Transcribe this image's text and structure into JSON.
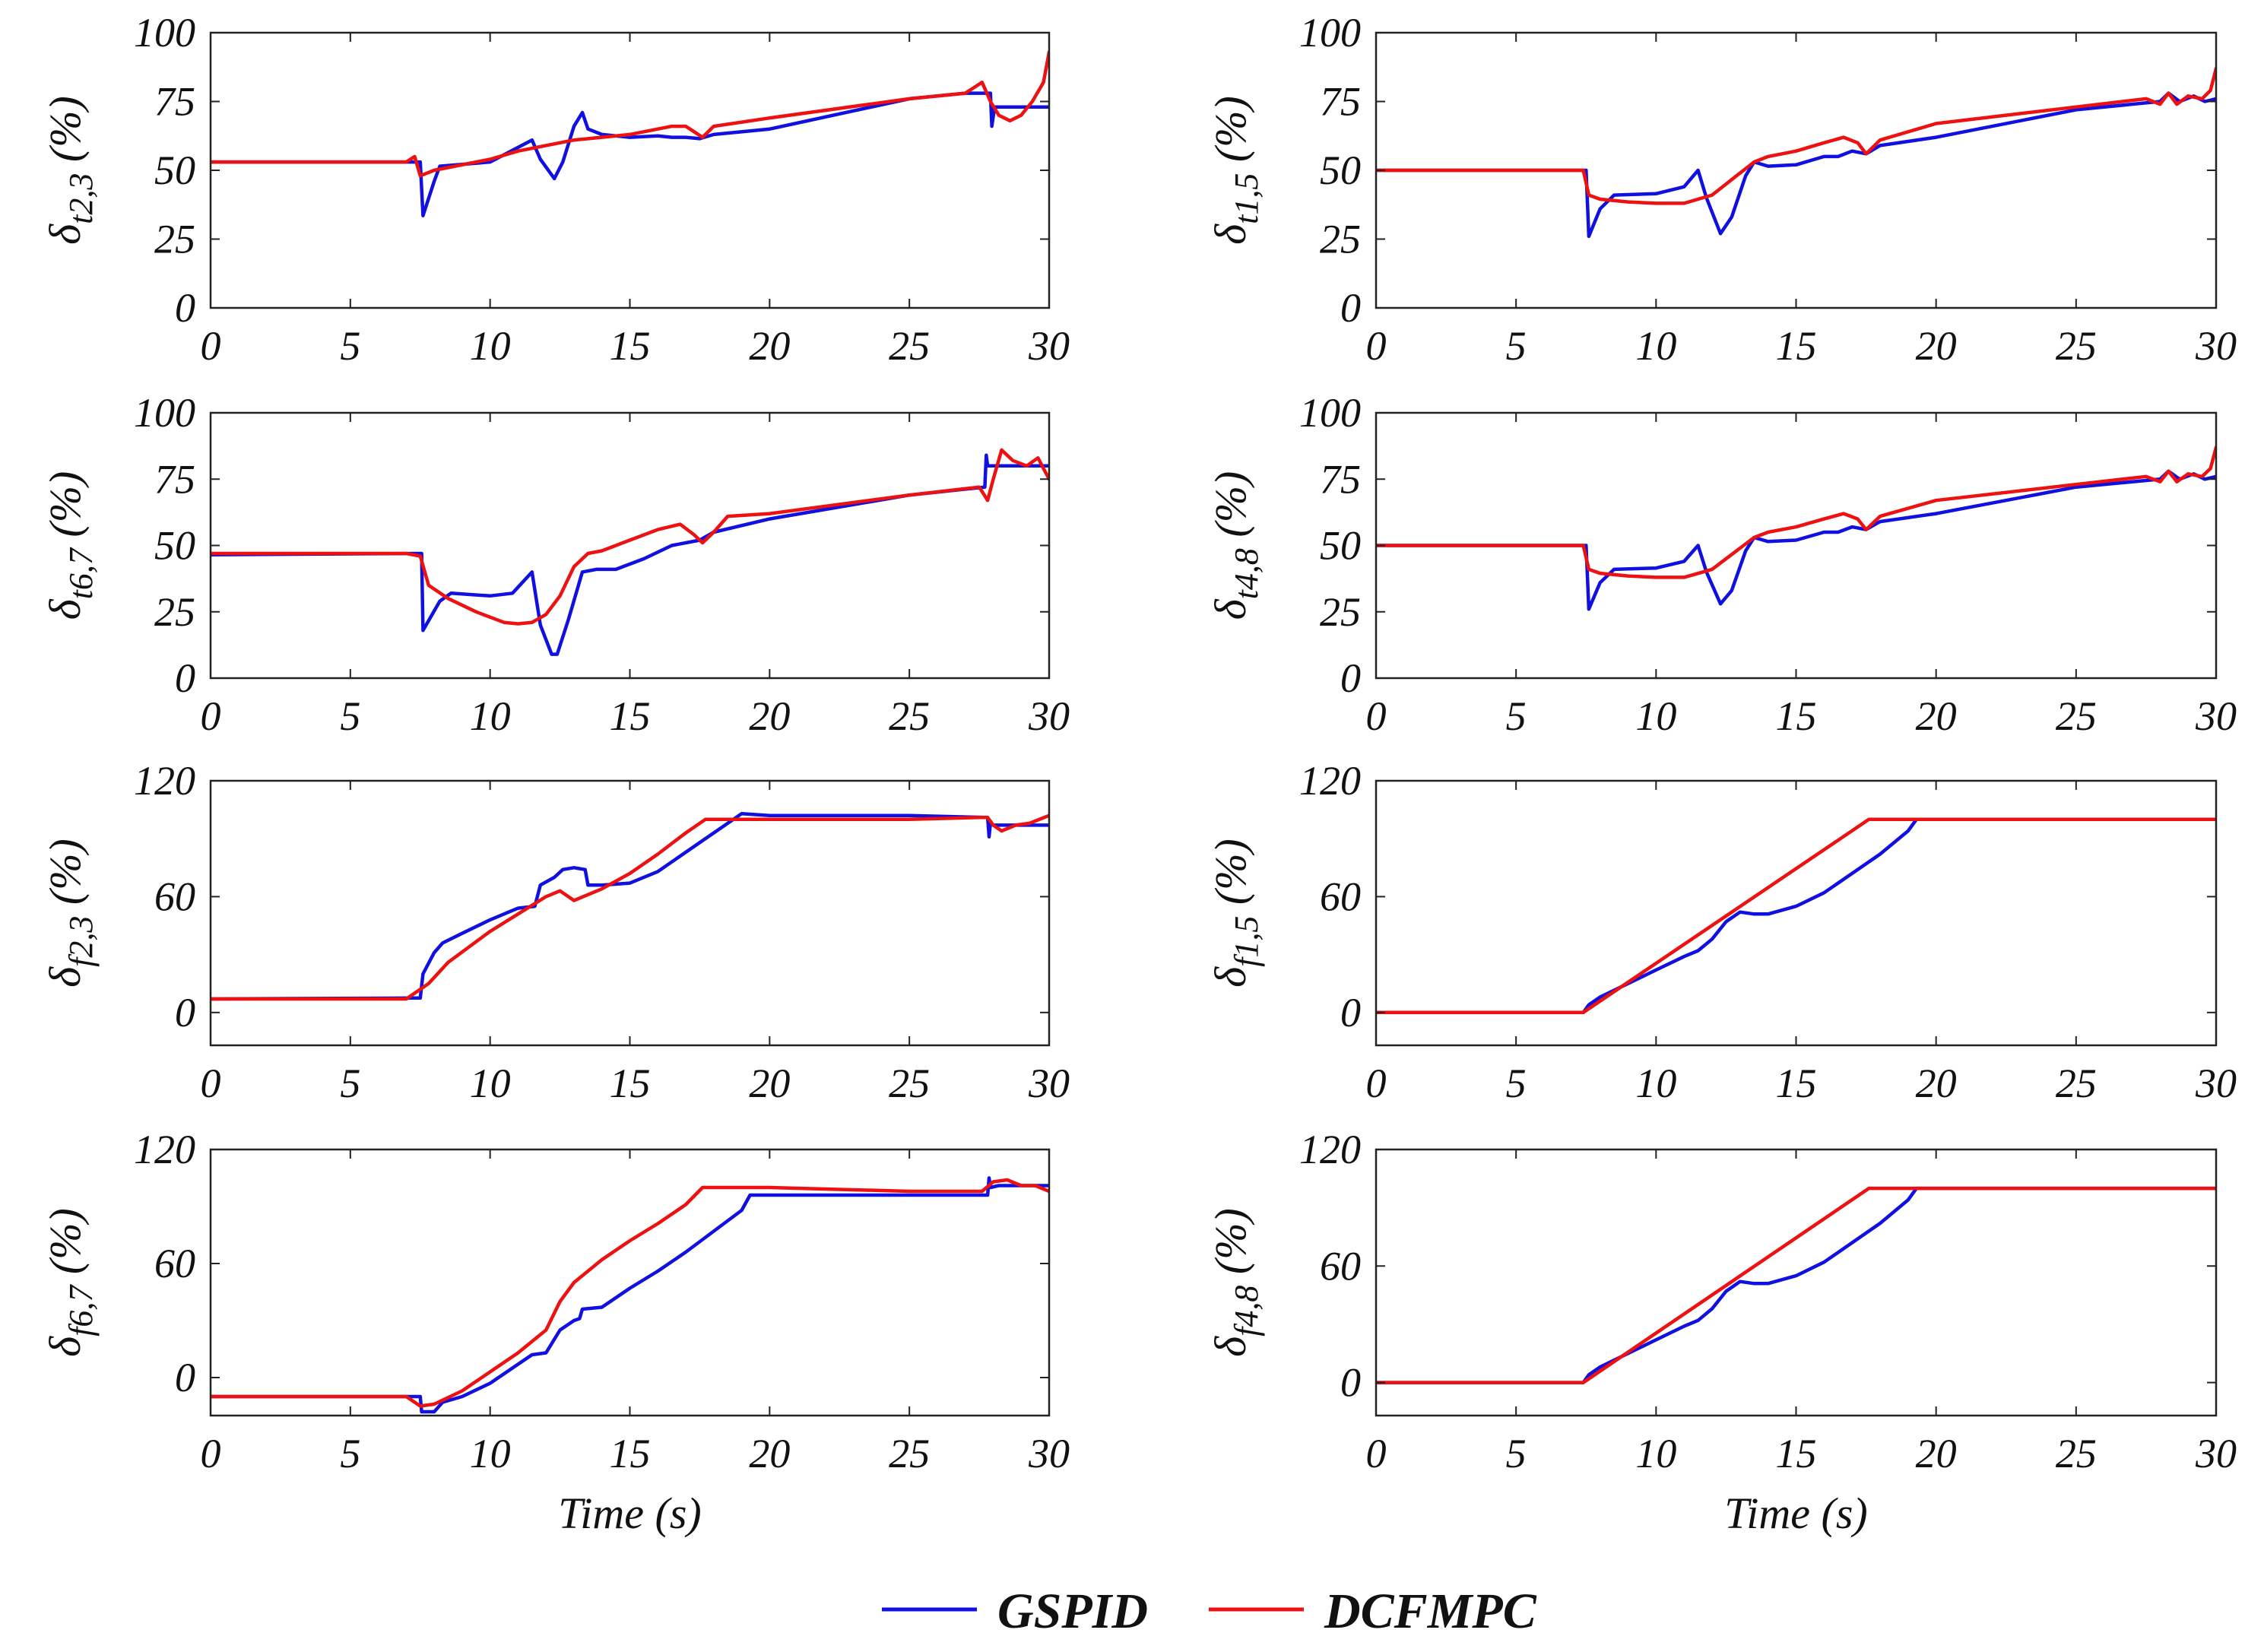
{
  "colors": {
    "gspid": "#1010e0",
    "dcfmpc": "#ee1111"
  },
  "legend": {
    "gspid_label": "GSPID",
    "dcfmpc_label": "DCFMPC"
  },
  "chart_data": [
    {
      "type": "line",
      "id": "p1",
      "ylabel": {
        "main": "δ",
        "sub": "t2,3",
        "unit": " (%)"
      },
      "xlabel": "",
      "xlim": [
        0,
        30
      ],
      "ylim": [
        0,
        100
      ],
      "xticks": [
        "0",
        "5",
        "10",
        "15",
        "20",
        "25",
        "30"
      ],
      "yticks": [
        "0",
        "25",
        "50",
        "75",
        "100"
      ],
      "series": [
        {
          "name": "GSPID",
          "x": [
            0,
            7.4,
            7.5,
            7.6,
            8,
            8.2,
            10,
            11.5,
            11.8,
            12.3,
            12.6,
            13.0,
            13.3,
            13.5,
            14,
            15,
            16,
            16.5,
            17,
            17.5,
            18,
            20,
            25,
            27,
            27.9,
            27.95,
            28.05,
            28.1,
            30
          ],
          "y": [
            53,
            53,
            53,
            33.5,
            46,
            51.5,
            53,
            61,
            54,
            47,
            53,
            66,
            71,
            65,
            63,
            62,
            62.5,
            62,
            62,
            61.5,
            63,
            65,
            76,
            78,
            78,
            66,
            73,
            73,
            73
          ]
        },
        {
          "name": "DCFMPC",
          "x": [
            0,
            7,
            7.3,
            7.5,
            8,
            10,
            11,
            12,
            13,
            14,
            15,
            16,
            16.5,
            17,
            17.3,
            17.6,
            18,
            20,
            25,
            27,
            27.6,
            27.9,
            28.2,
            28.6,
            29,
            29.4,
            29.8,
            30
          ],
          "y": [
            53,
            53,
            55,
            48,
            50,
            54,
            57,
            59,
            61,
            62,
            63,
            65,
            66,
            66,
            64,
            62,
            66,
            69,
            76,
            78,
            82,
            75,
            70,
            68,
            70,
            75,
            82,
            93
          ]
        }
      ]
    },
    {
      "type": "line",
      "id": "p2",
      "ylabel": {
        "main": "δ",
        "sub": "t1,5",
        "unit": " (%)"
      },
      "xlabel": "",
      "xlim": [
        0,
        30
      ],
      "ylim": [
        0,
        100
      ],
      "xticks": [
        "0",
        "5",
        "10",
        "15",
        "20",
        "25",
        "30"
      ],
      "yticks": [
        "0",
        "25",
        "50",
        "75",
        "100"
      ],
      "series": [
        {
          "name": "GSPID",
          "x": [
            0,
            7.4,
            7.5,
            7.6,
            8,
            8.5,
            10,
            11,
            11.5,
            11.8,
            12.3,
            12.7,
            13.2,
            13.5,
            14,
            15,
            16,
            16.5,
            17,
            17.5,
            18,
            20,
            25,
            28,
            28.3,
            28.7,
            29.2,
            29.6,
            30
          ],
          "y": [
            50,
            50,
            50,
            26,
            36,
            41,
            41.5,
            44,
            50,
            40,
            27,
            33,
            48,
            53,
            51.5,
            52,
            55,
            55,
            57,
            56,
            59,
            62,
            72,
            75,
            78,
            75,
            77,
            75,
            76
          ]
        },
        {
          "name": "DCFMPC",
          "x": [
            0,
            7,
            7.4,
            7.6,
            8,
            9,
            10,
            11,
            12,
            13,
            13.5,
            14,
            15,
            16,
            16.7,
            17.2,
            17.5,
            18,
            20,
            25,
            27.5,
            28,
            28.3,
            28.6,
            29,
            29.5,
            29.8,
            30
          ],
          "y": [
            50,
            50,
            50,
            41,
            39.5,
            38.5,
            38,
            38,
            41,
            49,
            53,
            55,
            57,
            60,
            62,
            60,
            56,
            61,
            67,
            73,
            76,
            74,
            78,
            74,
            77,
            76,
            79,
            87
          ]
        }
      ]
    },
    {
      "type": "line",
      "id": "p3",
      "ylabel": {
        "main": "δ",
        "sub": "t6,7",
        "unit": " (%)"
      },
      "xlabel": "",
      "xlim": [
        0,
        30
      ],
      "ylim": [
        0,
        100
      ],
      "xticks": [
        "0",
        "5",
        "10",
        "15",
        "20",
        "25",
        "30"
      ],
      "yticks": [
        "0",
        "25",
        "50",
        "75",
        "100"
      ],
      "series": [
        {
          "name": "GSPID",
          "x": [
            0,
            7.5,
            7.55,
            7.6,
            8.2,
            8.6,
            10,
            10.8,
            11.5,
            11.8,
            12.2,
            12.4,
            12.8,
            13.3,
            13.8,
            14.5,
            15.5,
            16.5,
            17.5,
            18,
            20,
            25,
            27.7,
            27.75,
            27.8,
            28.2,
            29,
            30
          ],
          "y": [
            46.5,
            47,
            47,
            18,
            29,
            32,
            31,
            32,
            40,
            20,
            9,
            9,
            22,
            40,
            41,
            41,
            45,
            50,
            52,
            55,
            60,
            69,
            72,
            84,
            80,
            80,
            80,
            80
          ]
        },
        {
          "name": "DCFMPC",
          "x": [
            0,
            7,
            7.5,
            7.8,
            8.5,
            9.5,
            10.5,
            11,
            11.5,
            12,
            12.5,
            13,
            13.5,
            14,
            15,
            16,
            16.8,
            17.3,
            17.6,
            18,
            18.5,
            20,
            25,
            27.5,
            27.8,
            28,
            28.3,
            28.7,
            29.2,
            29.6,
            30
          ],
          "y": [
            47,
            47,
            46,
            35,
            30,
            25,
            21,
            20.5,
            21,
            24,
            31,
            42,
            47,
            48,
            52,
            56,
            58,
            54,
            51,
            55,
            61,
            62,
            69,
            72,
            67,
            75,
            86,
            82,
            80,
            83,
            75
          ]
        }
      ]
    },
    {
      "type": "line",
      "id": "p4",
      "ylabel": {
        "main": "δ",
        "sub": "t4,8",
        "unit": " (%)"
      },
      "xlabel": "",
      "xlim": [
        0,
        30
      ],
      "ylim": [
        0,
        100
      ],
      "xticks": [
        "0",
        "5",
        "10",
        "15",
        "20",
        "25",
        "30"
      ],
      "yticks": [
        "0",
        "25",
        "50",
        "75",
        "100"
      ],
      "series": [
        {
          "name": "GSPID",
          "x": [
            0,
            7.4,
            7.5,
            7.6,
            8,
            8.5,
            10,
            11,
            11.5,
            11.8,
            12.3,
            12.7,
            13.2,
            13.5,
            14,
            15,
            16,
            16.5,
            17,
            17.5,
            18,
            20,
            25,
            28,
            28.3,
            28.7,
            29.2,
            29.6,
            30
          ],
          "y": [
            50,
            50,
            50,
            26,
            36,
            41,
            41.5,
            44,
            50,
            40,
            28,
            33,
            48,
            53,
            51.5,
            52,
            55,
            55,
            57,
            56,
            59,
            62,
            72,
            75,
            78,
            75,
            77,
            75,
            76
          ]
        },
        {
          "name": "DCFMPC",
          "x": [
            0,
            7,
            7.4,
            7.6,
            8,
            9,
            10,
            11,
            12,
            13,
            13.5,
            14,
            15,
            16,
            16.7,
            17.2,
            17.5,
            18,
            20,
            25,
            27.5,
            28,
            28.3,
            28.6,
            29,
            29.5,
            29.8,
            30
          ],
          "y": [
            50,
            50,
            50,
            41,
            39.5,
            38.5,
            38,
            38,
            41,
            49,
            53,
            55,
            57,
            60,
            62,
            60,
            56,
            61,
            67,
            73,
            76,
            74,
            78,
            74,
            77,
            76,
            79,
            87
          ]
        }
      ]
    },
    {
      "type": "line",
      "id": "p5",
      "ylabel": {
        "main": "δ",
        "sub": "f2,3",
        "unit": " (%)"
      },
      "xlabel": "",
      "xlim": [
        0,
        30
      ],
      "ylim": [
        -17,
        120
      ],
      "xticks": [
        "0",
        "5",
        "10",
        "15",
        "20",
        "25",
        "30"
      ],
      "yticks": [
        "0",
        "60",
        "120"
      ],
      "series": [
        {
          "name": "GSPID",
          "x": [
            0,
            7.4,
            7.5,
            7.6,
            8,
            8.3,
            9,
            10,
            11,
            11.6,
            11.8,
            12.3,
            12.6,
            13,
            13.4,
            13.5,
            14,
            15,
            16,
            17,
            18,
            19,
            20,
            25,
            27.8,
            27.85,
            27.9,
            28,
            28.5,
            30
          ],
          "y": [
            7,
            7.5,
            7.5,
            20,
            31,
            36,
            41,
            48,
            54,
            55,
            66,
            70,
            74,
            75,
            74,
            66,
            66,
            67,
            73,
            83,
            93,
            103,
            102,
            102,
            101,
            91,
            98,
            97,
            97,
            97
          ]
        },
        {
          "name": "DCFMPC",
          "x": [
            0,
            7,
            7.8,
            8.5,
            10,
            11,
            12,
            12.5,
            13,
            14,
            15,
            16,
            17,
            17.7,
            20,
            25,
            27.5,
            27.8,
            28,
            28.3,
            28.8,
            29.3,
            30
          ],
          "y": [
            7,
            7,
            15,
            26,
            42,
            51,
            60,
            63,
            58,
            64,
            72,
            82,
            93,
            100,
            100,
            100,
            101,
            101,
            97,
            94,
            97,
            98,
            102
          ]
        }
      ]
    },
    {
      "type": "line",
      "id": "p6",
      "ylabel": {
        "main": "δ",
        "sub": "f1,5",
        "unit": " (%)"
      },
      "xlabel": "",
      "xlim": [
        0,
        30
      ],
      "ylim": [
        -17,
        120
      ],
      "xticks": [
        "0",
        "5",
        "10",
        "15",
        "20",
        "25",
        "30"
      ],
      "yticks": [
        "0",
        "60",
        "120"
      ],
      "series": [
        {
          "name": "GSPID",
          "x": [
            0,
            7.4,
            7.6,
            8,
            9,
            10,
            11,
            11.5,
            12,
            12.5,
            13,
            13.5,
            14,
            15,
            16,
            17,
            18,
            19,
            19.3,
            30
          ],
          "y": [
            0,
            0,
            4,
            8,
            15,
            22,
            29,
            32,
            38,
            47,
            52,
            51,
            51,
            55,
            62,
            72,
            82,
            94,
            100,
            100
          ]
        },
        {
          "name": "DCFMPC",
          "x": [
            0,
            7.4,
            17.6,
            30
          ],
          "y": [
            0,
            0,
            100,
            100
          ]
        }
      ]
    },
    {
      "type": "line",
      "id": "p7",
      "ylabel": {
        "main": "δ",
        "sub": "f6,7",
        "unit": " (%)"
      },
      "xlabel": "Time (s)",
      "xlim": [
        0,
        30
      ],
      "ylim": [
        -20,
        120
      ],
      "xticks": [
        "0",
        "5",
        "10",
        "15",
        "20",
        "25",
        "30"
      ],
      "yticks": [
        "0",
        "60",
        "120"
      ],
      "series": [
        {
          "name": "GSPID",
          "x": [
            0,
            7.45,
            7.5,
            7.55,
            8,
            8.3,
            9,
            10,
            11,
            11.5,
            12,
            12.5,
            13,
            13.2,
            13.3,
            14,
            15,
            16,
            17,
            18,
            19,
            19.3,
            25,
            27.8,
            27.85,
            27.9,
            28.2,
            30
          ],
          "y": [
            -10,
            -10,
            -10,
            -18,
            -18,
            -13,
            -10,
            -3,
            7,
            12,
            13,
            25,
            30,
            31,
            36,
            37,
            47,
            56,
            66,
            77,
            88,
            96,
            96,
            96,
            105,
            100,
            101,
            101
          ]
        },
        {
          "name": "DCFMPC",
          "x": [
            0,
            6.5,
            7,
            7.5,
            8,
            9,
            10,
            11,
            12,
            12.5,
            13,
            14,
            15,
            16,
            17,
            17.6,
            20,
            25,
            27.6,
            28,
            28.5,
            29,
            29.5,
            30
          ],
          "y": [
            -10,
            -10,
            -10,
            -15,
            -14,
            -7,
            3,
            13,
            25,
            40,
            50,
            62,
            72,
            81,
            91,
            100,
            100,
            98,
            98,
            103,
            104,
            101,
            101,
            98
          ]
        }
      ]
    },
    {
      "type": "line",
      "id": "p8",
      "ylabel": {
        "main": "δ",
        "sub": "f4,8",
        "unit": " (%)"
      },
      "xlabel": "Time (s)",
      "xlim": [
        0,
        30
      ],
      "ylim": [
        -17,
        120
      ],
      "xticks": [
        "0",
        "5",
        "10",
        "15",
        "20",
        "25",
        "30"
      ],
      "yticks": [
        "0",
        "60",
        "120"
      ],
      "series": [
        {
          "name": "GSPID",
          "x": [
            0,
            7.4,
            7.6,
            8,
            9,
            10,
            11,
            11.5,
            12,
            12.5,
            13,
            13.5,
            14,
            15,
            16,
            17,
            18,
            19,
            19.3,
            30
          ],
          "y": [
            0,
            0,
            4,
            8,
            15,
            22,
            29,
            32,
            38,
            47,
            52,
            51,
            51,
            55,
            62,
            72,
            82,
            94,
            100,
            100
          ]
        },
        {
          "name": "DCFMPC",
          "x": [
            0,
            7.4,
            17.6,
            30
          ],
          "y": [
            0,
            0,
            100,
            100
          ]
        }
      ]
    }
  ]
}
